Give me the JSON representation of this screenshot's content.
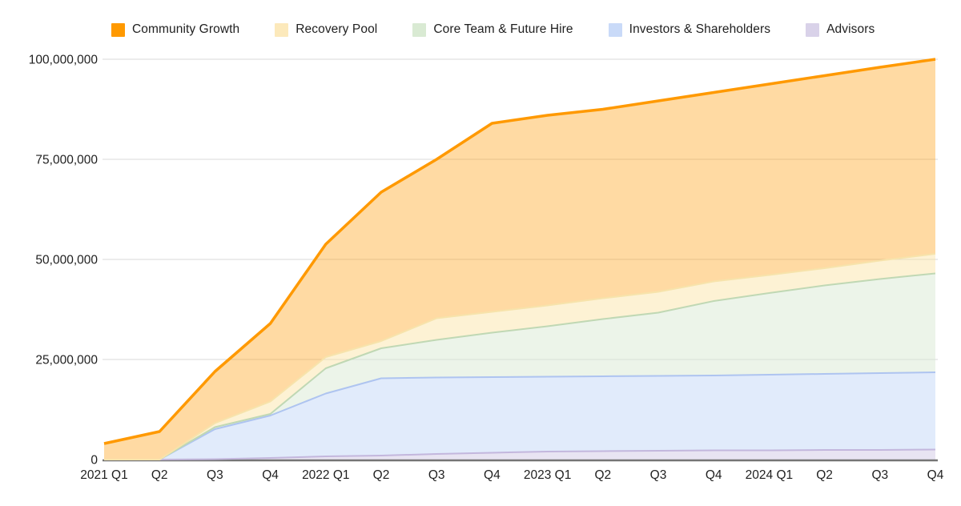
{
  "chart_data": {
    "type": "area",
    "stacked": true,
    "title": "",
    "xlabel": "",
    "ylabel": "",
    "ylim": [
      0,
      100000000
    ],
    "grid": "horizontal",
    "legend_position": "top",
    "y_axis_tick_labels": [
      "0",
      "25,000,000",
      "50,000,000",
      "75,000,000",
      "100,000,000"
    ],
    "y_axis_tick_values": [
      0,
      25000000,
      50000000,
      75000000,
      100000000
    ],
    "categories": [
      "2021 Q1",
      "Q2",
      "Q3",
      "Q4",
      "2022 Q1",
      "Q2",
      "Q3",
      "Q4",
      "2023 Q1",
      "Q2",
      "Q3",
      "Q4",
      "2024 Q1",
      "Q2",
      "Q3",
      "Q4"
    ],
    "series": [
      {
        "name": "Community Growth",
        "swatch_color": "#ff9900",
        "stroke_color": "#ff9900",
        "fill_color": "rgba(255,153,0,0.36)",
        "stroke_width": 3.5,
        "values": [
          4000000,
          7000000,
          12900000,
          19500000,
          28200000,
          37200000,
          39700000,
          47100000,
          47500000,
          47200000,
          47700000,
          47200000,
          47700000,
          48100000,
          48300000,
          48600000
        ]
      },
      {
        "name": "Recovery Pool",
        "swatch_color": "#fce9bb",
        "stroke_color": "#f7e3ab",
        "fill_color": "rgba(251,227,160,0.45)",
        "stroke_width": 2,
        "values": [
          0,
          0,
          1000000,
          3100000,
          2800000,
          1800000,
          5400000,
          5200000,
          5200000,
          5200000,
          5200000,
          4900000,
          4500000,
          4300000,
          4600000,
          4900000
        ]
      },
      {
        "name": "Core Team & Future Hire",
        "swatch_color": "#d9ead3",
        "stroke_color": "#c0d8b4",
        "fill_color": "rgba(217,234,211,0.5)",
        "stroke_width": 2,
        "values": [
          0,
          0,
          500000,
          400000,
          6300000,
          7500000,
          9400000,
          11100000,
          12600000,
          14300000,
          15800000,
          18600000,
          20400000,
          22100000,
          23500000,
          24700000
        ]
      },
      {
        "name": "Investors & Shareholders",
        "swatch_color": "#c9daf8",
        "stroke_color": "#aec4f0",
        "fill_color": "rgba(201,218,248,0.55)",
        "stroke_width": 2,
        "values": [
          0,
          0,
          7500000,
          10600000,
          15700000,
          19300000,
          19100000,
          18900000,
          18700000,
          18700000,
          18700000,
          18700000,
          18900000,
          19000000,
          19200000,
          19300000
        ]
      },
      {
        "name": "Advisors",
        "swatch_color": "#d9d2e9",
        "stroke_color": "#c3b7dd",
        "fill_color": "rgba(217,210,233,0.6)",
        "stroke_width": 2,
        "values": [
          0,
          0,
          100000,
          400000,
          800000,
          1000000,
          1400000,
          1700000,
          2000000,
          2100000,
          2200000,
          2300000,
          2300000,
          2400000,
          2400000,
          2500000
        ]
      }
    ],
    "style": {
      "gridline_color": "#d9d9d9",
      "axis_line_color": "#757575",
      "tick_label_color": "#1f1f1f"
    }
  }
}
